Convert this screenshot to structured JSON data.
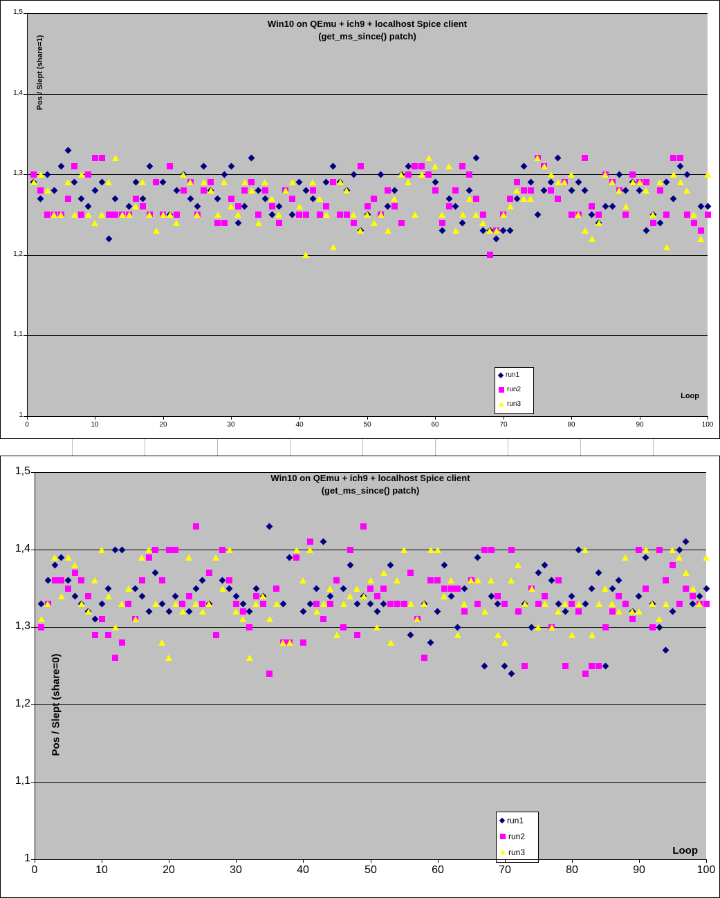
{
  "colors": {
    "plot_background": "#C0C0C0",
    "chart_background": "#FFFFFF",
    "grid": "#000000"
  },
  "chart_data": [
    {
      "type": "scatter",
      "title": "Win10 on QEmu + ich9 + localhost Spice client",
      "subtitle": "(get_ms_since() patch)",
      "ylabel": "Pos / Slept (share=1)",
      "xlabel": "Loop",
      "ylim": [
        1,
        1.5
      ],
      "xlim": [
        0,
        100
      ],
      "grid": "horizontal-major",
      "legend_position": "inside-bottom-right",
      "y_tick_labels": [
        "1,5",
        "1,4",
        "1,3",
        "1,2",
        "1,1",
        "1"
      ],
      "y_tick_values": [
        1.5,
        1.4,
        1.3,
        1.2,
        1.1,
        1.0
      ],
      "x_tick_labels": [
        "0",
        "10",
        "20",
        "30",
        "40",
        "50",
        "60",
        "70",
        "80",
        "90",
        "100"
      ],
      "x_tick_values": [
        0,
        10,
        20,
        30,
        40,
        50,
        60,
        70,
        80,
        90,
        100
      ],
      "x": [
        1,
        2,
        3,
        4,
        5,
        6,
        7,
        8,
        9,
        10,
        11,
        12,
        13,
        14,
        15,
        16,
        17,
        18,
        19,
        20,
        21,
        22,
        23,
        24,
        25,
        26,
        27,
        28,
        29,
        30,
        31,
        32,
        33,
        34,
        35,
        36,
        37,
        38,
        39,
        40,
        41,
        42,
        43,
        44,
        45,
        46,
        47,
        48,
        49,
        50,
        51,
        52,
        53,
        54,
        55,
        56,
        57,
        58,
        59,
        60,
        61,
        62,
        63,
        64,
        65,
        66,
        67,
        68,
        69,
        70,
        71,
        72,
        73,
        74,
        75,
        76,
        77,
        78,
        79,
        80,
        81,
        82,
        83,
        84,
        85,
        86,
        87,
        88,
        89,
        90,
        91,
        92,
        93,
        94,
        95,
        96,
        97,
        98,
        99,
        100
      ],
      "series": [
        {
          "name": "run1",
          "marker": "diamond",
          "color": "#000080",
          "values": [
            1.29,
            1.27,
            1.3,
            1.28,
            1.31,
            1.33,
            1.29,
            1.27,
            1.26,
            1.28,
            1.29,
            1.22,
            1.27,
            1.25,
            1.26,
            1.29,
            1.27,
            1.31,
            1.29,
            1.29,
            1.25,
            1.28,
            1.3,
            1.27,
            1.26,
            1.31,
            1.28,
            1.27,
            1.3,
            1.31,
            1.24,
            1.26,
            1.32,
            1.28,
            1.27,
            1.25,
            1.26,
            1.28,
            1.25,
            1.29,
            1.28,
            1.27,
            1.25,
            1.29,
            1.31,
            1.29,
            1.28,
            1.3,
            1.23,
            1.25,
            1.27,
            1.3,
            1.26,
            1.28,
            1.3,
            1.31,
            1.31,
            1.31,
            1.3,
            1.29,
            1.23,
            1.27,
            1.26,
            1.24,
            1.28,
            1.32,
            1.23,
            1.23,
            1.22,
            1.23,
            1.23,
            1.27,
            1.31,
            1.29,
            1.25,
            1.28,
            1.29,
            1.32,
            1.29,
            1.28,
            1.29,
            1.28,
            1.25,
            1.24,
            1.26,
            1.26,
            1.3,
            1.28,
            1.29,
            1.28,
            1.23,
            1.25,
            1.24,
            1.29,
            1.27,
            1.31,
            1.3,
            1.24,
            1.26,
            1.26
          ]
        },
        {
          "name": "run2",
          "marker": "square",
          "color": "#FF00FF",
          "values": [
            1.3,
            1.28,
            1.25,
            1.25,
            1.25,
            1.27,
            1.31,
            1.25,
            1.3,
            1.32,
            1.32,
            1.25,
            1.25,
            1.25,
            1.25,
            1.27,
            1.26,
            1.25,
            1.29,
            1.25,
            1.31,
            1.25,
            1.28,
            1.29,
            1.25,
            1.28,
            1.29,
            1.24,
            1.24,
            1.27,
            1.26,
            1.28,
            1.29,
            1.25,
            1.28,
            1.26,
            1.24,
            1.28,
            1.27,
            1.25,
            1.25,
            1.28,
            1.25,
            1.26,
            1.29,
            1.25,
            1.25,
            1.24,
            1.31,
            1.26,
            1.27,
            1.25,
            1.28,
            1.26,
            1.24,
            1.3,
            1.31,
            1.31,
            1.3,
            1.28,
            1.24,
            1.26,
            1.28,
            1.31,
            1.3,
            1.27,
            1.25,
            1.2,
            1.23,
            1.25,
            1.27,
            1.29,
            1.28,
            1.28,
            1.32,
            1.31,
            1.28,
            1.27,
            1.29,
            1.25,
            1.25,
            1.32,
            1.26,
            1.25,
            1.3,
            1.29,
            1.28,
            1.25,
            1.3,
            1.29,
            1.29,
            1.24,
            1.28,
            1.25,
            1.32,
            1.32,
            1.25,
            1.24,
            1.23,
            1.25
          ]
        },
        {
          "name": "run3",
          "marker": "triangle",
          "color": "#FFFF00",
          "values": [
            1.29,
            1.3,
            1.28,
            1.25,
            1.25,
            1.29,
            1.25,
            1.3,
            1.25,
            1.24,
            1.25,
            1.29,
            1.32,
            1.25,
            1.25,
            1.26,
            1.29,
            1.25,
            1.23,
            1.25,
            1.25,
            1.24,
            1.3,
            1.29,
            1.25,
            1.29,
            1.28,
            1.25,
            1.29,
            1.26,
            1.25,
            1.29,
            1.28,
            1.24,
            1.29,
            1.27,
            1.25,
            1.28,
            1.29,
            1.26,
            1.2,
            1.29,
            1.27,
            1.25,
            1.21,
            1.29,
            1.28,
            1.25,
            1.23,
            1.25,
            1.24,
            1.25,
            1.23,
            1.27,
            1.3,
            1.29,
            1.25,
            1.3,
            1.32,
            1.31,
            1.25,
            1.31,
            1.23,
            1.25,
            1.27,
            1.25,
            1.24,
            1.23,
            1.23,
            1.25,
            1.26,
            1.28,
            1.27,
            1.27,
            1.32,
            1.31,
            1.3,
            1.29,
            1.29,
            1.3,
            1.25,
            1.23,
            1.22,
            1.24,
            1.3,
            1.29,
            1.28,
            1.26,
            1.29,
            1.29,
            1.28,
            1.25,
            1.29,
            1.21,
            1.3,
            1.29,
            1.28,
            1.25,
            1.22,
            1.3
          ]
        }
      ]
    },
    {
      "type": "scatter",
      "title": "Win10 on QEmu + ich9 + localhost Spice client",
      "subtitle": "(get_ms_since() patch)",
      "ylabel": "Pos / Slept (share=0)",
      "xlabel": "Loop",
      "ylim": [
        1,
        1.5
      ],
      "xlim": [
        0,
        100
      ],
      "grid": "horizontal-major",
      "legend_position": "inside-bottom-right",
      "y_tick_labels": [
        "1,5",
        "1,4",
        "1,3",
        "1,2",
        "1,1",
        "1"
      ],
      "y_tick_values": [
        1.5,
        1.4,
        1.3,
        1.2,
        1.1,
        1.0
      ],
      "x_tick_labels": [
        "0",
        "10",
        "20",
        "30",
        "40",
        "50",
        "60",
        "70",
        "80",
        "90",
        "100"
      ],
      "x_tick_values": [
        0,
        10,
        20,
        30,
        40,
        50,
        60,
        70,
        80,
        90,
        100
      ],
      "x": [
        1,
        2,
        3,
        4,
        5,
        6,
        7,
        8,
        9,
        10,
        11,
        12,
        13,
        14,
        15,
        16,
        17,
        18,
        19,
        20,
        21,
        22,
        23,
        24,
        25,
        26,
        27,
        28,
        29,
        30,
        31,
        32,
        33,
        34,
        35,
        36,
        37,
        38,
        39,
        40,
        41,
        42,
        43,
        44,
        45,
        46,
        47,
        48,
        49,
        50,
        51,
        52,
        53,
        54,
        55,
        56,
        57,
        58,
        59,
        60,
        61,
        62,
        63,
        64,
        65,
        66,
        67,
        68,
        69,
        70,
        71,
        72,
        73,
        74,
        75,
        76,
        77,
        78,
        79,
        80,
        81,
        82,
        83,
        84,
        85,
        86,
        87,
        88,
        89,
        90,
        91,
        92,
        93,
        94,
        95,
        96,
        97,
        98,
        99,
        100
      ],
      "series": [
        {
          "name": "run1",
          "marker": "diamond",
          "color": "#000080",
          "values": [
            1.33,
            1.36,
            1.38,
            1.39,
            1.36,
            1.34,
            1.33,
            1.32,
            1.31,
            1.33,
            1.35,
            1.4,
            1.4,
            1.33,
            1.35,
            1.34,
            1.32,
            1.37,
            1.33,
            1.32,
            1.34,
            1.33,
            1.32,
            1.35,
            1.36,
            1.33,
            1.29,
            1.36,
            1.35,
            1.34,
            1.33,
            1.32,
            1.35,
            1.34,
            1.43,
            1.35,
            1.33,
            1.39,
            1.39,
            1.32,
            1.33,
            1.35,
            1.41,
            1.34,
            1.36,
            1.35,
            1.38,
            1.33,
            1.34,
            1.33,
            1.32,
            1.33,
            1.38,
            1.33,
            1.33,
            1.29,
            1.31,
            1.33,
            1.28,
            1.32,
            1.38,
            1.34,
            1.3,
            1.35,
            1.36,
            1.39,
            1.25,
            1.34,
            1.33,
            1.25,
            1.24,
            1.32,
            1.33,
            1.3,
            1.37,
            1.38,
            1.36,
            1.33,
            1.32,
            1.34,
            1.4,
            1.33,
            1.35,
            1.37,
            1.25,
            1.35,
            1.36,
            1.33,
            1.32,
            1.34,
            1.39,
            1.33,
            1.3,
            1.27,
            1.32,
            1.4,
            1.41,
            1.33,
            1.34,
            1.35
          ]
        },
        {
          "name": "run2",
          "marker": "square",
          "color": "#FF00FF",
          "values": [
            1.3,
            1.33,
            1.36,
            1.36,
            1.35,
            1.37,
            1.36,
            1.34,
            1.29,
            1.31,
            1.29,
            1.26,
            1.28,
            1.33,
            1.31,
            1.36,
            1.39,
            1.4,
            1.36,
            1.4,
            1.4,
            1.33,
            1.34,
            1.43,
            1.33,
            1.37,
            1.29,
            1.4,
            1.36,
            1.33,
            1.32,
            1.3,
            1.34,
            1.33,
            1.24,
            1.35,
            1.28,
            1.28,
            1.39,
            1.28,
            1.41,
            1.33,
            1.31,
            1.33,
            1.36,
            1.3,
            1.4,
            1.29,
            1.43,
            1.35,
            1.34,
            1.35,
            1.33,
            1.33,
            1.33,
            1.37,
            1.31,
            1.26,
            1.36,
            1.36,
            1.35,
            1.35,
            1.35,
            1.32,
            1.36,
            1.33,
            1.4,
            1.4,
            1.34,
            1.33,
            1.4,
            1.32,
            1.25,
            1.35,
            1.33,
            1.34,
            1.3,
            1.36,
            1.25,
            1.33,
            1.32,
            1.24,
            1.25,
            1.25,
            1.3,
            1.32,
            1.34,
            1.33,
            1.31,
            1.4,
            1.35,
            1.3,
            1.4,
            1.36,
            1.38,
            1.33,
            1.35,
            1.34,
            1.33,
            1.33
          ]
        },
        {
          "name": "run3",
          "marker": "triangle",
          "color": "#FFFF00",
          "values": [
            1.31,
            1.33,
            1.39,
            1.34,
            1.39,
            1.38,
            1.33,
            1.32,
            1.36,
            1.4,
            1.34,
            1.3,
            1.33,
            1.35,
            1.31,
            1.39,
            1.4,
            1.33,
            1.28,
            1.26,
            1.33,
            1.32,
            1.39,
            1.33,
            1.32,
            1.33,
            1.39,
            1.35,
            1.4,
            1.32,
            1.31,
            1.26,
            1.33,
            1.34,
            1.31,
            1.33,
            1.28,
            1.28,
            1.4,
            1.36,
            1.4,
            1.32,
            1.33,
            1.35,
            1.29,
            1.33,
            1.34,
            1.35,
            1.34,
            1.36,
            1.3,
            1.37,
            1.28,
            1.36,
            1.4,
            1.33,
            1.31,
            1.33,
            1.4,
            1.4,
            1.34,
            1.36,
            1.29,
            1.33,
            1.36,
            1.36,
            1.32,
            1.36,
            1.29,
            1.28,
            1.36,
            1.38,
            1.33,
            1.35,
            1.3,
            1.33,
            1.3,
            1.32,
            1.33,
            1.29,
            1.33,
            1.4,
            1.29,
            1.33,
            1.35,
            1.33,
            1.32,
            1.39,
            1.32,
            1.32,
            1.4,
            1.33,
            1.31,
            1.33,
            1.4,
            1.39,
            1.37,
            1.35,
            1.33,
            1.39
          ]
        }
      ]
    }
  ]
}
